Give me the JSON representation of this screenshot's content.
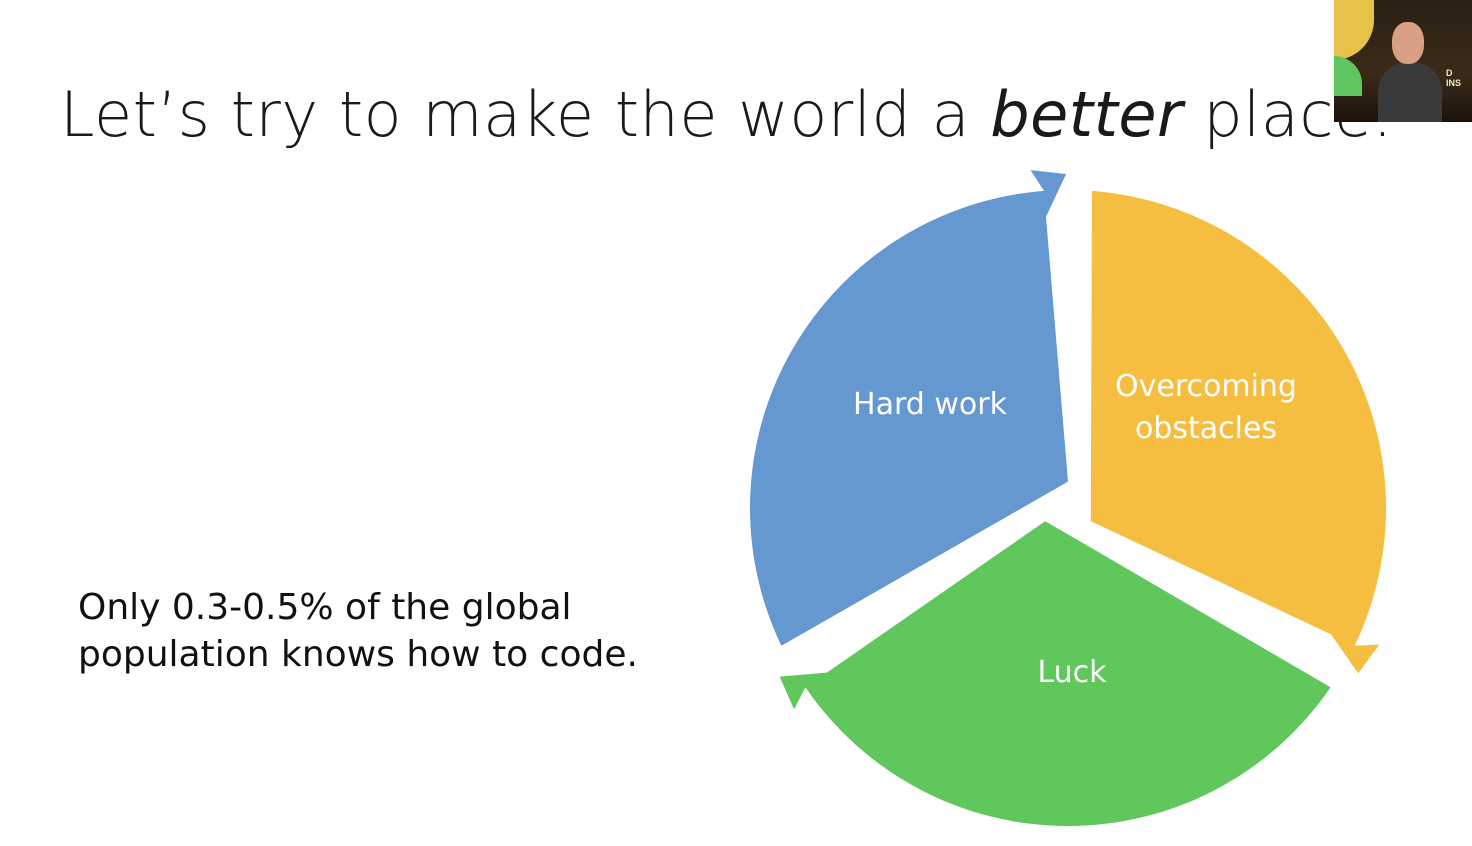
{
  "slide": {
    "title_before": "Let’s try to make the world a ",
    "title_emphasis": "better",
    "title_after": " place.",
    "body_line1": "Only 0.3-0.5% of the global",
    "body_line2": "population knows how to code."
  },
  "diagram": {
    "segments": [
      {
        "label_lines": [
          "Hard work"
        ],
        "color": "#6598d0"
      },
      {
        "label_lines": [
          "Overcoming",
          "obstacles"
        ],
        "color": "#f5be41"
      },
      {
        "label_lines": [
          "Luck"
        ],
        "color": "#5fc75b"
      }
    ]
  },
  "webcam": {
    "sign_line1": "D",
    "sign_line2": "INS"
  }
}
